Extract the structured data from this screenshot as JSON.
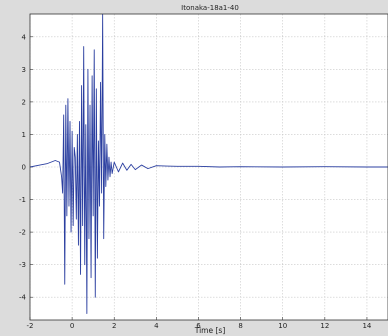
{
  "chart_data": {
    "type": "line",
    "title": "Itonaka-18a1-40",
    "xlabel": "Time [s]",
    "ylabel": "",
    "xlim": [
      -2,
      15
    ],
    "ylim": [
      -4.7,
      4.7
    ],
    "xticks": [
      -2,
      0,
      2,
      4,
      6,
      8,
      10,
      12,
      14
    ],
    "yticks": [
      -4,
      -3,
      -2,
      -1,
      0,
      1,
      2,
      3,
      4
    ],
    "grid": true,
    "line_color": "#2b3fa0",
    "series": [
      {
        "name": "",
        "x": [
          -2,
          -1.6,
          -1.2,
          -0.8,
          -0.6,
          -0.5,
          -0.45,
          -0.4,
          -0.35,
          -0.3,
          -0.25,
          -0.2,
          -0.15,
          -0.1,
          -0.05,
          0,
          0.05,
          0.1,
          0.15,
          0.2,
          0.25,
          0.3,
          0.35,
          0.4,
          0.45,
          0.5,
          0.55,
          0.6,
          0.65,
          0.7,
          0.75,
          0.8,
          0.85,
          0.9,
          0.95,
          1.0,
          1.05,
          1.1,
          1.15,
          1.2,
          1.25,
          1.3,
          1.35,
          1.4,
          1.45,
          1.5,
          1.55,
          1.6,
          1.65,
          1.7,
          1.75,
          1.8,
          1.85,
          1.9,
          2.0,
          2.2,
          2.4,
          2.6,
          2.8,
          3.0,
          3.3,
          3.6,
          4.0,
          4.5,
          5.0,
          6.0,
          7.0,
          8.0,
          10.0,
          12.0,
          14.0,
          15.0
        ],
        "values": [
          0.0,
          0.05,
          0.1,
          0.2,
          0.15,
          -0.3,
          -0.8,
          1.6,
          -3.6,
          1.9,
          -1.5,
          2.1,
          -1.2,
          1.4,
          -2.0,
          1.1,
          -1.8,
          0.6,
          0.3,
          -1.6,
          1.0,
          -2.4,
          1.4,
          -3.3,
          2.5,
          -1.8,
          3.7,
          -3.0,
          1.3,
          -4.5,
          3.0,
          -2.2,
          1.9,
          -3.4,
          2.8,
          -1.5,
          3.6,
          -4.0,
          2.4,
          -2.8,
          0.8,
          -1.2,
          2.6,
          -0.8,
          4.7,
          -2.2,
          1.0,
          -0.6,
          0.7,
          -0.4,
          0.3,
          -0.3,
          0.15,
          -0.2,
          0.15,
          -0.15,
          0.12,
          -0.1,
          0.08,
          -0.08,
          0.06,
          -0.05,
          0.04,
          0.03,
          0.02,
          0.02,
          0.0,
          0.01,
          0.0,
          0.01,
          0.0,
          0.0
        ]
      }
    ]
  }
}
